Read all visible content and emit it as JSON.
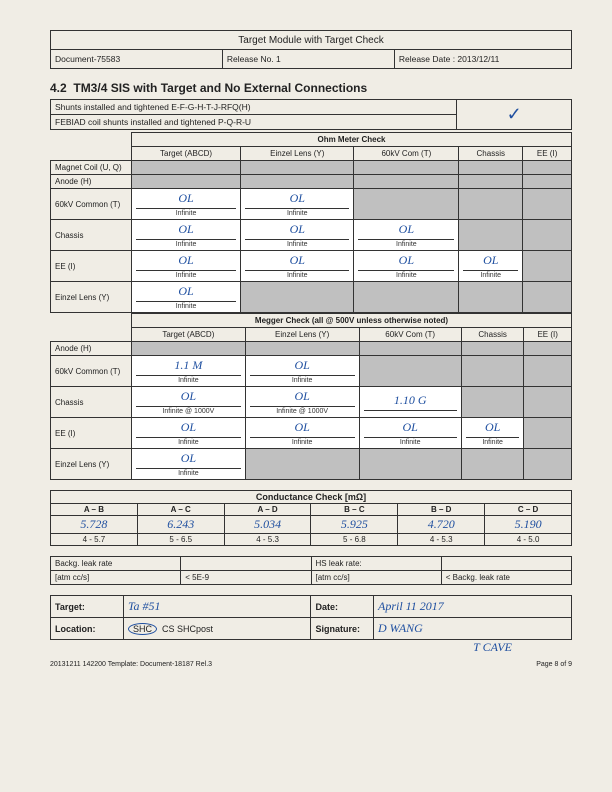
{
  "header": {
    "title": "Target Module with Target Check",
    "doc": "Document-75583",
    "release": "Release No. 1",
    "releaseDate": "Release Date : 2013/12/11"
  },
  "section": {
    "num": "4.2",
    "title": "TM3/4 SIS with Target and No External Connections"
  },
  "shunts": {
    "line1": "Shunts installed and tightened E-F-G-H-T-J-RFQ(H)",
    "line2": "FEBIAD coil shunts installed and tightened P-Q-R-U"
  },
  "ohmCheck": {
    "title": "Ohm Meter Check",
    "cols": [
      "Target (ABCD)",
      "Einzel Lens (Y)",
      "60kV Com (T)",
      "Chassis",
      "EE (I)"
    ],
    "rows": [
      {
        "label": "Magnet Coil (U, Q)",
        "cells": []
      },
      {
        "label": "Anode (H)",
        "cells": []
      },
      {
        "label": "60kV Common (T)",
        "cells": [
          "OL",
          "OL"
        ],
        "sub": "Infinite"
      },
      {
        "label": "Chassis",
        "cells": [
          "OL",
          "OL",
          "OL"
        ],
        "sub": "Infinite"
      },
      {
        "label": "EE (I)",
        "cells": [
          "OL",
          "OL",
          "OL",
          "OL"
        ],
        "sub": "Infinite"
      },
      {
        "label": "Einzel Lens (Y)",
        "cells": [
          "OL"
        ],
        "sub": "Infinite"
      }
    ]
  },
  "meggerCheck": {
    "title": "Megger Check (all @ 500V unless otherwise noted)",
    "cols": [
      "Target (ABCD)",
      "Einzel Lens (Y)",
      "60kV Com (T)",
      "Chassis",
      "EE (I)"
    ],
    "rows": [
      {
        "label": "Anode (H)",
        "cells": []
      },
      {
        "label": "60kV Common (T)",
        "cells": [
          "1.1 M",
          "OL"
        ],
        "sub": "Infinite"
      },
      {
        "label": "Chassis",
        "cells": [
          "OL",
          "OL",
          "1.10 G"
        ],
        "sub": [
          "Infinite @ 1000V",
          "Infinite @ 1000V",
          ""
        ]
      },
      {
        "label": "EE (I)",
        "cells": [
          "OL",
          "OL",
          "OL",
          "OL"
        ],
        "sub": "Infinite"
      },
      {
        "label": "Einzel Lens (Y)",
        "cells": [
          "OL"
        ],
        "sub": "Infinite"
      }
    ]
  },
  "conductance": {
    "title": "Conductance Check [mΩ]",
    "cols": [
      "A – B",
      "A – C",
      "A – D",
      "B – C",
      "B – D",
      "C – D"
    ],
    "vals": [
      "5.728",
      "6.243",
      "5.034",
      "5.925",
      "4.720",
      "5.190"
    ],
    "ranges": [
      "4 - 5.7",
      "5 - 6.5",
      "4 - 5.3",
      "5 - 6.8",
      "4 - 5.3",
      "4 - 5.0"
    ]
  },
  "leak": {
    "l1": "Backg. leak rate",
    "l2": "HS leak rate:",
    "l3": "[atm cc/s]",
    "l4": "< 5E-9",
    "l5": "[atm cc/s]",
    "l6": "< Backg. leak rate"
  },
  "sig": {
    "targetLabel": "Target:",
    "target": "Ta #51",
    "dateLabel": "Date:",
    "date": "April 11 2017",
    "locLabel": "Location:",
    "loc": "SHC",
    "locOpts": "CS  SHCpost",
    "sigLabel": "Signature:",
    "sig1": "D WANG",
    "sig2": "T CAVE"
  },
  "footer": {
    "left": "20131211 142200 Template: Document-18187 Rel.3",
    "right": "Page 8 of 9"
  }
}
